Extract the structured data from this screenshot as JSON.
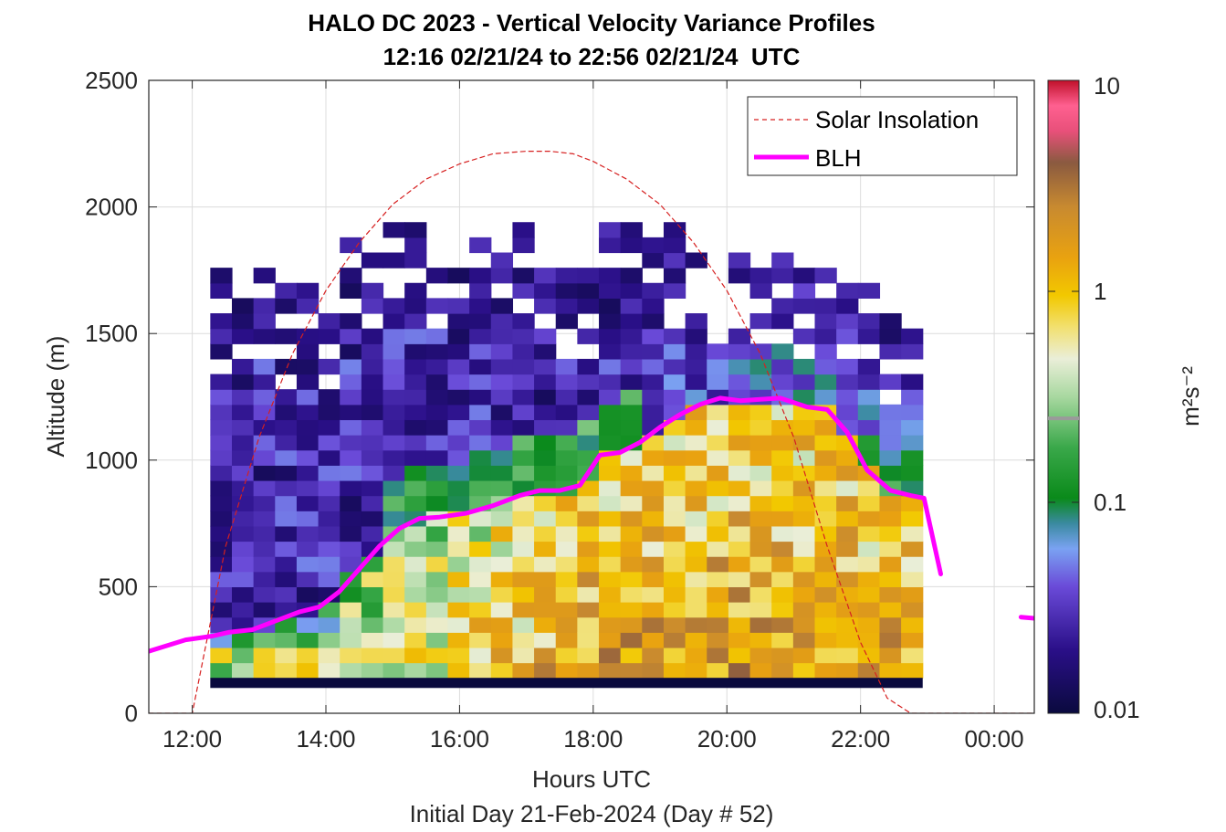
{
  "chart_data": {
    "type": "heatmap",
    "title": "HALO DC 2023 - Vertical Velocity Variance Profiles",
    "subtitle": "12:16 02/21/24 to 22:56 02/21/24  UTC",
    "xlabel": "Hours UTC",
    "ylabel": "Altitude (m)",
    "footer": "Initial Day 21-Feb-2024 (Day # 52)",
    "x_unit": "hours UTC",
    "xlim": [
      11.35,
      24.6
    ],
    "x_ticks": [
      12,
      14,
      16,
      18,
      20,
      22,
      24
    ],
    "x_tick_labels": [
      "12:00",
      "14:00",
      "16:00",
      "18:00",
      "20:00",
      "22:00",
      "00:00"
    ],
    "ylim": [
      0,
      2500
    ],
    "y_ticks": [
      0,
      500,
      1000,
      1500,
      2000,
      2500
    ],
    "y_tick_labels": [
      "0",
      "500",
      "1000",
      "1500",
      "2000",
      "2500"
    ],
    "grid": true,
    "colorbar": {
      "label": "m²s⁻²",
      "scale": "log",
      "limits": [
        0.01,
        10
      ],
      "ticks": [
        0.01,
        0.1,
        1,
        10
      ],
      "tick_labels": [
        "0.01",
        "0.1",
        "1",
        "10"
      ],
      "threshold_marker": 0.25
    },
    "heatmap": {
      "x_start": 12.27,
      "x_end": 22.93,
      "bin_hours": 0.3333,
      "bin_altitude_m": 60,
      "surface_band_m": [
        100,
        140
      ],
      "profile_top_m": [
        1720,
        1630,
        1750,
        1660,
        1720,
        1600,
        1850,
        1840,
        1900,
        1920,
        1860,
        1880,
        1860,
        1800,
        1950,
        1870,
        1730,
        1750,
        1900,
        1900,
        1880,
        1900,
        1780,
        1740,
        1790,
        1760,
        1800,
        1730,
        1710,
        1660,
        1650,
        1600,
        1580
      ],
      "summary": "Low variance (about 0.01-0.05) aloft in the morning; high variance (0.5-3) within the convective boundary layer in the afternoon below the BLH line."
    },
    "series": [
      {
        "name": "Solar Insolation",
        "style": "dashed",
        "color": "#d62020",
        "x": [
          11.35,
          12.0,
          12.5,
          13.0,
          13.5,
          14.0,
          14.5,
          15.0,
          15.5,
          16.0,
          16.5,
          17.0,
          17.35,
          17.7,
          18.0,
          18.5,
          19.0,
          19.5,
          20.0,
          20.5,
          21.0,
          21.5,
          22.0,
          22.4,
          22.75,
          23.5,
          24.6
        ],
        "y": [
          0,
          0,
          660,
          1090,
          1420,
          1670,
          1860,
          2010,
          2110,
          2170,
          2210,
          2220,
          2220,
          2210,
          2180,
          2110,
          2010,
          1860,
          1670,
          1420,
          1090,
          660,
          280,
          60,
          0,
          0,
          0
        ]
      },
      {
        "name": "BLH",
        "style": "solid",
        "color": "#ff00ff",
        "x": [
          11.35,
          11.9,
          12.3,
          12.55,
          12.9,
          13.2,
          13.6,
          13.9,
          14.2,
          14.5,
          14.8,
          15.1,
          15.4,
          15.7,
          16.1,
          16.5,
          16.9,
          17.2,
          17.5,
          17.8,
          18.1,
          18.4,
          18.7,
          19.0,
          19.3,
          19.6,
          19.9,
          20.2,
          20.5,
          20.8,
          21.2,
          21.5,
          21.8,
          22.1,
          22.45,
          22.75,
          22.95,
          23.2
        ],
        "y": [
          245,
          290,
          305,
          320,
          330,
          360,
          400,
          420,
          480,
          570,
          660,
          730,
          770,
          775,
          790,
          820,
          860,
          880,
          880,
          900,
          1020,
          1030,
          1070,
          1130,
          1180,
          1220,
          1245,
          1235,
          1240,
          1245,
          1210,
          1200,
          1110,
          960,
          880,
          860,
          850,
          550
        ]
      },
      {
        "name": "BLH-late",
        "style": "solid",
        "color": "#ff00ff",
        "x": [
          24.4,
          24.6
        ],
        "y": [
          380,
          375
        ]
      }
    ],
    "legend": {
      "position": "top-right",
      "entries": [
        "Solar Insolation",
        "BLH"
      ]
    }
  }
}
